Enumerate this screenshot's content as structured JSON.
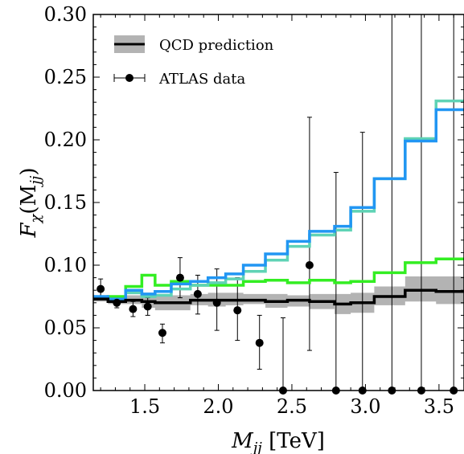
{
  "chart_data": {
    "type": "line",
    "xlabel_main": "M",
    "xlabel_sub": "jj",
    "xlabel_unit": " [TeV]",
    "ylabel_main": "F",
    "ylabel_chi": "χ",
    "ylabel_open": "(M",
    "ylabel_sub": "jj",
    "ylabel_close": ")",
    "xlim": [
      1.15,
      3.67
    ],
    "ylim": [
      0.0,
      0.3
    ],
    "xticks": [
      1.5,
      2.0,
      2.5,
      3.0,
      3.5
    ],
    "xtick_labels": [
      "1.5",
      "2.0",
      "2.5",
      "3.0",
      "3.5"
    ],
    "yticks": [
      0.0,
      0.05,
      0.1,
      0.15,
      0.2,
      0.25,
      0.3
    ],
    "ytick_labels": [
      "0.00",
      "0.05",
      "0.10",
      "0.15",
      "0.20",
      "0.25",
      "0.30"
    ],
    "legend": {
      "placement": "top-left",
      "entries": [
        {
          "label": "QCD prediction",
          "kind": "band-line"
        },
        {
          "label": "ATLAS data",
          "kind": "point-errorbar"
        }
      ]
    },
    "bin_edges": [
      1.15,
      1.25,
      1.37,
      1.48,
      1.57,
      1.68,
      1.81,
      1.93,
      2.05,
      2.17,
      2.32,
      2.47,
      2.62,
      2.79,
      2.9,
      3.06,
      3.27,
      3.48,
      3.67
    ],
    "series": [
      {
        "name": "QCD prediction",
        "color": "#000000",
        "values": [
          0.073,
          0.071,
          0.072,
          0.071,
          0.07,
          0.07,
          0.072,
          0.072,
          0.072,
          0.072,
          0.071,
          0.072,
          0.071,
          0.069,
          0.07,
          0.075,
          0.08,
          0.079
        ],
        "band_low": [
          0.071,
          0.069,
          0.069,
          0.066,
          0.064,
          0.064,
          0.068,
          0.067,
          0.068,
          0.069,
          0.066,
          0.067,
          0.065,
          0.061,
          0.062,
          0.068,
          0.071,
          0.069
        ],
        "band_high": [
          0.076,
          0.075,
          0.076,
          0.077,
          0.076,
          0.076,
          0.077,
          0.078,
          0.078,
          0.077,
          0.077,
          0.076,
          0.077,
          0.077,
          0.078,
          0.083,
          0.091,
          0.091
        ],
        "band_color": "#b3b3b3"
      },
      {
        "color": "#2196f3",
        "values": [
          0.075,
          0.073,
          0.08,
          0.077,
          0.079,
          0.085,
          0.087,
          0.09,
          0.093,
          0.1,
          0.109,
          0.119,
          0.127,
          0.131,
          0.146,
          0.169,
          0.199,
          0.224
        ]
      },
      {
        "color": "#5fd3b5",
        "values": [
          0.074,
          0.072,
          0.078,
          0.075,
          0.076,
          0.081,
          0.084,
          0.086,
          0.089,
          0.095,
          0.104,
          0.115,
          0.124,
          0.128,
          0.143,
          0.169,
          0.201,
          0.231
        ]
      },
      {
        "color": "#33ee22",
        "values": [
          0.074,
          0.075,
          0.083,
          0.092,
          0.084,
          0.087,
          0.084,
          0.084,
          0.084,
          0.087,
          0.088,
          0.086,
          0.088,
          0.086,
          0.087,
          0.094,
          0.102,
          0.105
        ]
      }
    ],
    "data_points": {
      "name": "ATLAS data",
      "color": "#000000",
      "x": [
        1.2,
        1.31,
        1.42,
        1.52,
        1.62,
        1.74,
        1.86,
        1.99,
        2.13,
        2.28,
        2.44,
        2.62,
        2.8,
        2.98,
        3.18,
        3.38,
        3.6
      ],
      "y": [
        0.081,
        0.07,
        0.065,
        0.067,
        0.046,
        0.09,
        0.077,
        0.07,
        0.064,
        0.038,
        0.0,
        0.1,
        0.0,
        0.0,
        0.0,
        0.0,
        0.0
      ],
      "y_low": [
        0.073,
        0.066,
        0.059,
        0.06,
        0.038,
        0.074,
        0.061,
        0.048,
        0.04,
        0.017,
        0.0,
        0.032,
        0.0,
        0.0,
        0.0,
        0.0,
        0.0
      ],
      "y_high": [
        0.089,
        0.075,
        0.071,
        0.074,
        0.053,
        0.106,
        0.092,
        0.097,
        0.09,
        0.06,
        0.058,
        0.218,
        0.174,
        0.206,
        0.3,
        0.3,
        0.3
      ],
      "x_low": [
        1.15,
        1.25,
        1.37,
        1.48,
        1.57,
        1.68,
        1.81,
        1.93,
        2.05,
        2.17,
        2.32,
        2.47,
        2.62,
        2.79,
        2.9,
        3.06,
        3.27
      ],
      "x_high": [
        1.25,
        1.37,
        1.48,
        1.57,
        1.68,
        1.81,
        1.93,
        2.05,
        2.17,
        2.32,
        2.47,
        2.62,
        2.79,
        2.9,
        3.06,
        3.27,
        3.48
      ]
    }
  }
}
